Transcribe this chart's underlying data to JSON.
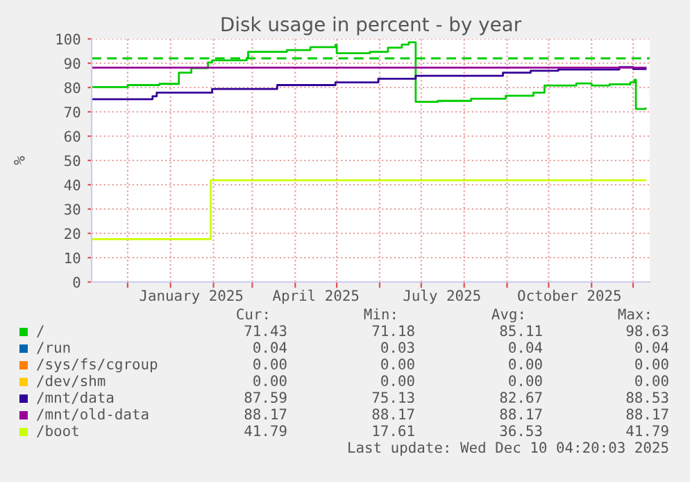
{
  "chart_data": {
    "type": "step",
    "title": "Disk usage in percent - by year",
    "ylabel": "%",
    "series": [
      {
        "name": "/",
        "color": "#00cc00",
        "x": [
          "2024-11-06",
          "2024-12-01",
          "2024-12-24",
          "2025-01-07",
          "2025-01-16",
          "2025-01-28",
          "2025-01-31",
          "2025-02-25",
          "2025-02-26",
          "2025-03-26",
          "2025-04-12",
          "2025-04-30",
          "2025-05-01",
          "2025-05-25",
          "2025-06-07",
          "2025-06-17",
          "2025-06-22",
          "2025-06-27",
          "2025-07-13",
          "2025-08-06",
          "2025-08-31",
          "2025-09-20",
          "2025-09-28",
          "2025-10-21",
          "2025-11-01",
          "2025-11-14",
          "2025-11-29",
          "2025-12-02",
          "2025-12-03",
          "2025-12-10"
        ],
        "values": [
          80.2,
          81.0,
          81.5,
          86.1,
          88.0,
          90.3,
          91.2,
          92.2,
          94.7,
          95.4,
          96.6,
          97.5,
          94.1,
          94.7,
          96.4,
          97.7,
          98.6,
          74.1,
          74.5,
          75.4,
          76.6,
          77.9,
          80.8,
          81.7,
          80.8,
          81.3,
          82.1,
          83.2,
          71.2,
          71.4
        ]
      },
      {
        "name": "/run",
        "color": "#0066b3"
      },
      {
        "name": "/sys/fs/cgroup",
        "color": "#ff8000"
      },
      {
        "name": "/dev/shm",
        "color": "#ffcc00"
      },
      {
        "name": "/mnt/data",
        "color": "#330099",
        "x": [
          "2024-11-06",
          "2024-12-19",
          "2024-12-22",
          "2025-01-31",
          "2025-03-19",
          "2025-04-30",
          "2025-05-31",
          "2025-06-27",
          "2025-08-29",
          "2025-09-18",
          "2025-10-08",
          "2025-11-21",
          "2025-12-01",
          "2025-12-10"
        ],
        "values": [
          75.2,
          76.4,
          77.9,
          79.4,
          81.0,
          82.1,
          83.6,
          84.8,
          86.1,
          86.9,
          87.4,
          88.4,
          87.6,
          87.6
        ]
      },
      {
        "name": "/mnt/old-data",
        "color": "#990099",
        "x": [
          "2024-11-06",
          "2025-12-10"
        ],
        "values": [
          88.2,
          88.2
        ]
      },
      {
        "name": "/boot",
        "color": "#ccff00",
        "x": [
          "2024-11-06",
          "2025-01-30",
          "2025-12-10"
        ],
        "values": [
          17.6,
          41.8,
          41.8
        ]
      }
    ],
    "xlim": [
      "2024-11-05",
      "2025-12-13"
    ],
    "xticks": [
      {
        "value": "2024-12-01",
        "label": null
      },
      {
        "value": "2025-01-01",
        "label": null
      },
      {
        "value": "2025-01-16",
        "label": "January 2025"
      },
      {
        "value": "2025-02-01",
        "label": null
      },
      {
        "value": "2025-03-01",
        "label": null
      },
      {
        "value": "2025-04-01",
        "label": null
      },
      {
        "value": "2025-04-16",
        "label": "April 2025"
      },
      {
        "value": "2025-05-01",
        "label": null
      },
      {
        "value": "2025-06-01",
        "label": null
      },
      {
        "value": "2025-07-01",
        "label": null
      },
      {
        "value": "2025-07-16",
        "label": "July 2025"
      },
      {
        "value": "2025-08-01",
        "label": null
      },
      {
        "value": "2025-09-01",
        "label": null
      },
      {
        "value": "2025-10-01",
        "label": null
      },
      {
        "value": "2025-10-16",
        "label": "October 2025"
      },
      {
        "value": "2025-11-01",
        "label": null
      },
      {
        "value": "2025-12-01",
        "label": null
      }
    ],
    "ylim": [
      0,
      100
    ],
    "yticks": [
      0,
      10,
      20,
      30,
      40,
      50,
      60,
      70,
      80,
      90,
      100
    ],
    "ref_lines": [
      {
        "axis": "y",
        "value": 92,
        "color": "#00cc00",
        "line_style": "dashed"
      }
    ],
    "grid": true,
    "legend": "bottom",
    "annotations": [
      "Cur:",
      "Min:",
      "Avg:",
      "Max:",
      "71.43",
      "71.18",
      "85.11",
      "98.63",
      "0.04",
      "0.03",
      "0.04",
      "0.04",
      "0.00",
      "0.00",
      "0.00",
      "0.00",
      "0.00",
      "0.00",
      "0.00",
      "0.00",
      "87.59",
      "75.13",
      "82.67",
      "88.53",
      "88.17",
      "88.17",
      "88.17",
      "88.17",
      "41.79",
      "17.61",
      "36.53",
      "41.79",
      "Last update: Wed Dec 10 04:20:03 2025"
    ]
  }
}
